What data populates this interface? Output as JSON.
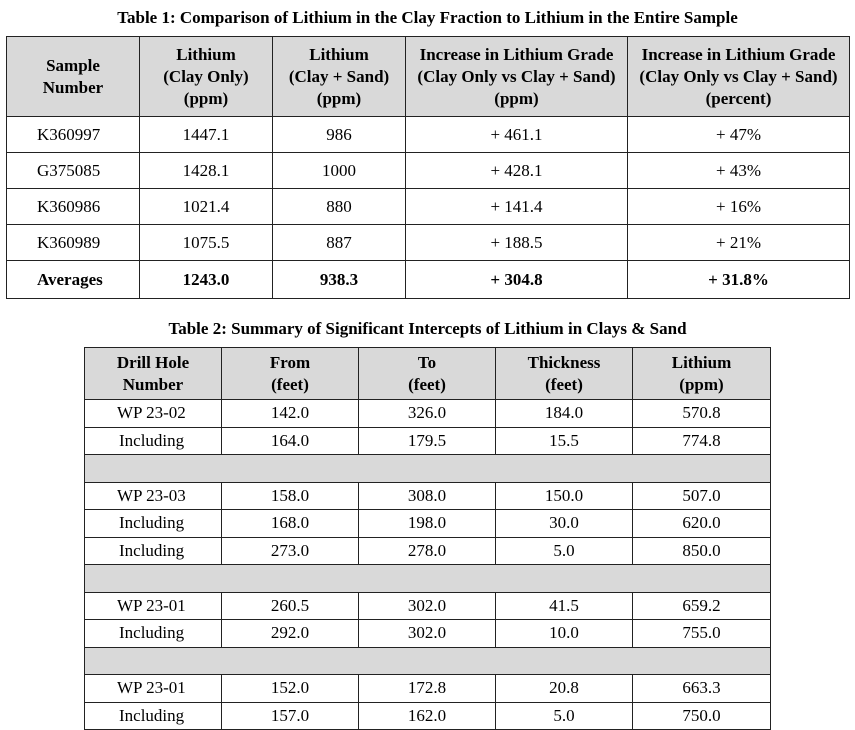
{
  "table1": {
    "caption": "Table 1: Comparison of Lithium in the Clay Fraction to Lithium in the Entire Sample",
    "headers": [
      [
        "Sample",
        "Number"
      ],
      [
        "Lithium",
        "(Clay Only)",
        "(ppm)"
      ],
      [
        "Lithium",
        "(Clay + Sand)",
        "(ppm)"
      ],
      [
        "Increase in Lithium Grade",
        "(Clay Only vs Clay + Sand)",
        "(ppm)"
      ],
      [
        "Increase in Lithium Grade",
        "(Clay Only vs Clay + Sand)",
        "(percent)"
      ]
    ],
    "rows": [
      [
        "K360997",
        "1447.1",
        "986",
        "+ 461.1",
        "+ 47%"
      ],
      [
        "G375085",
        "1428.1",
        "1000",
        "+ 428.1",
        "+ 43%"
      ],
      [
        "K360986",
        "1021.4",
        "880",
        "+ 141.4",
        "+ 16%"
      ],
      [
        "K360989",
        "1075.5",
        "887",
        "+ 188.5",
        "+ 21%"
      ]
    ],
    "averages": [
      "Averages",
      "1243.0",
      "938.3",
      "+ 304.8",
      "+ 31.8%"
    ]
  },
  "table2": {
    "caption": "Table 2: Summary of Significant Intercepts of Lithium in Clays & Sand",
    "headers": [
      [
        "Drill Hole",
        "Number"
      ],
      [
        "From",
        "(feet)"
      ],
      [
        "To",
        "(feet)"
      ],
      [
        "Thickness",
        "(feet)"
      ],
      [
        "Lithium",
        "(ppm)"
      ]
    ],
    "groups": [
      [
        [
          "WP 23-02",
          "142.0",
          "326.0",
          "184.0",
          "570.8"
        ],
        [
          "Including",
          "164.0",
          "179.5",
          "15.5",
          "774.8"
        ]
      ],
      [
        [
          "WP 23-03",
          "158.0",
          "308.0",
          "150.0",
          "507.0"
        ],
        [
          "Including",
          "168.0",
          "198.0",
          "30.0",
          "620.0"
        ],
        [
          "Including",
          "273.0",
          "278.0",
          "5.0",
          "850.0"
        ]
      ],
      [
        [
          "WP 23-01",
          "260.5",
          "302.0",
          "41.5",
          "659.2"
        ],
        [
          "Including",
          "292.0",
          "302.0",
          "10.0",
          "755.0"
        ]
      ],
      [
        [
          "WP 23-01",
          "152.0",
          "172.8",
          "20.8",
          "663.3"
        ],
        [
          "Including",
          "157.0",
          "162.0",
          "5.0",
          "750.0"
        ]
      ]
    ]
  }
}
